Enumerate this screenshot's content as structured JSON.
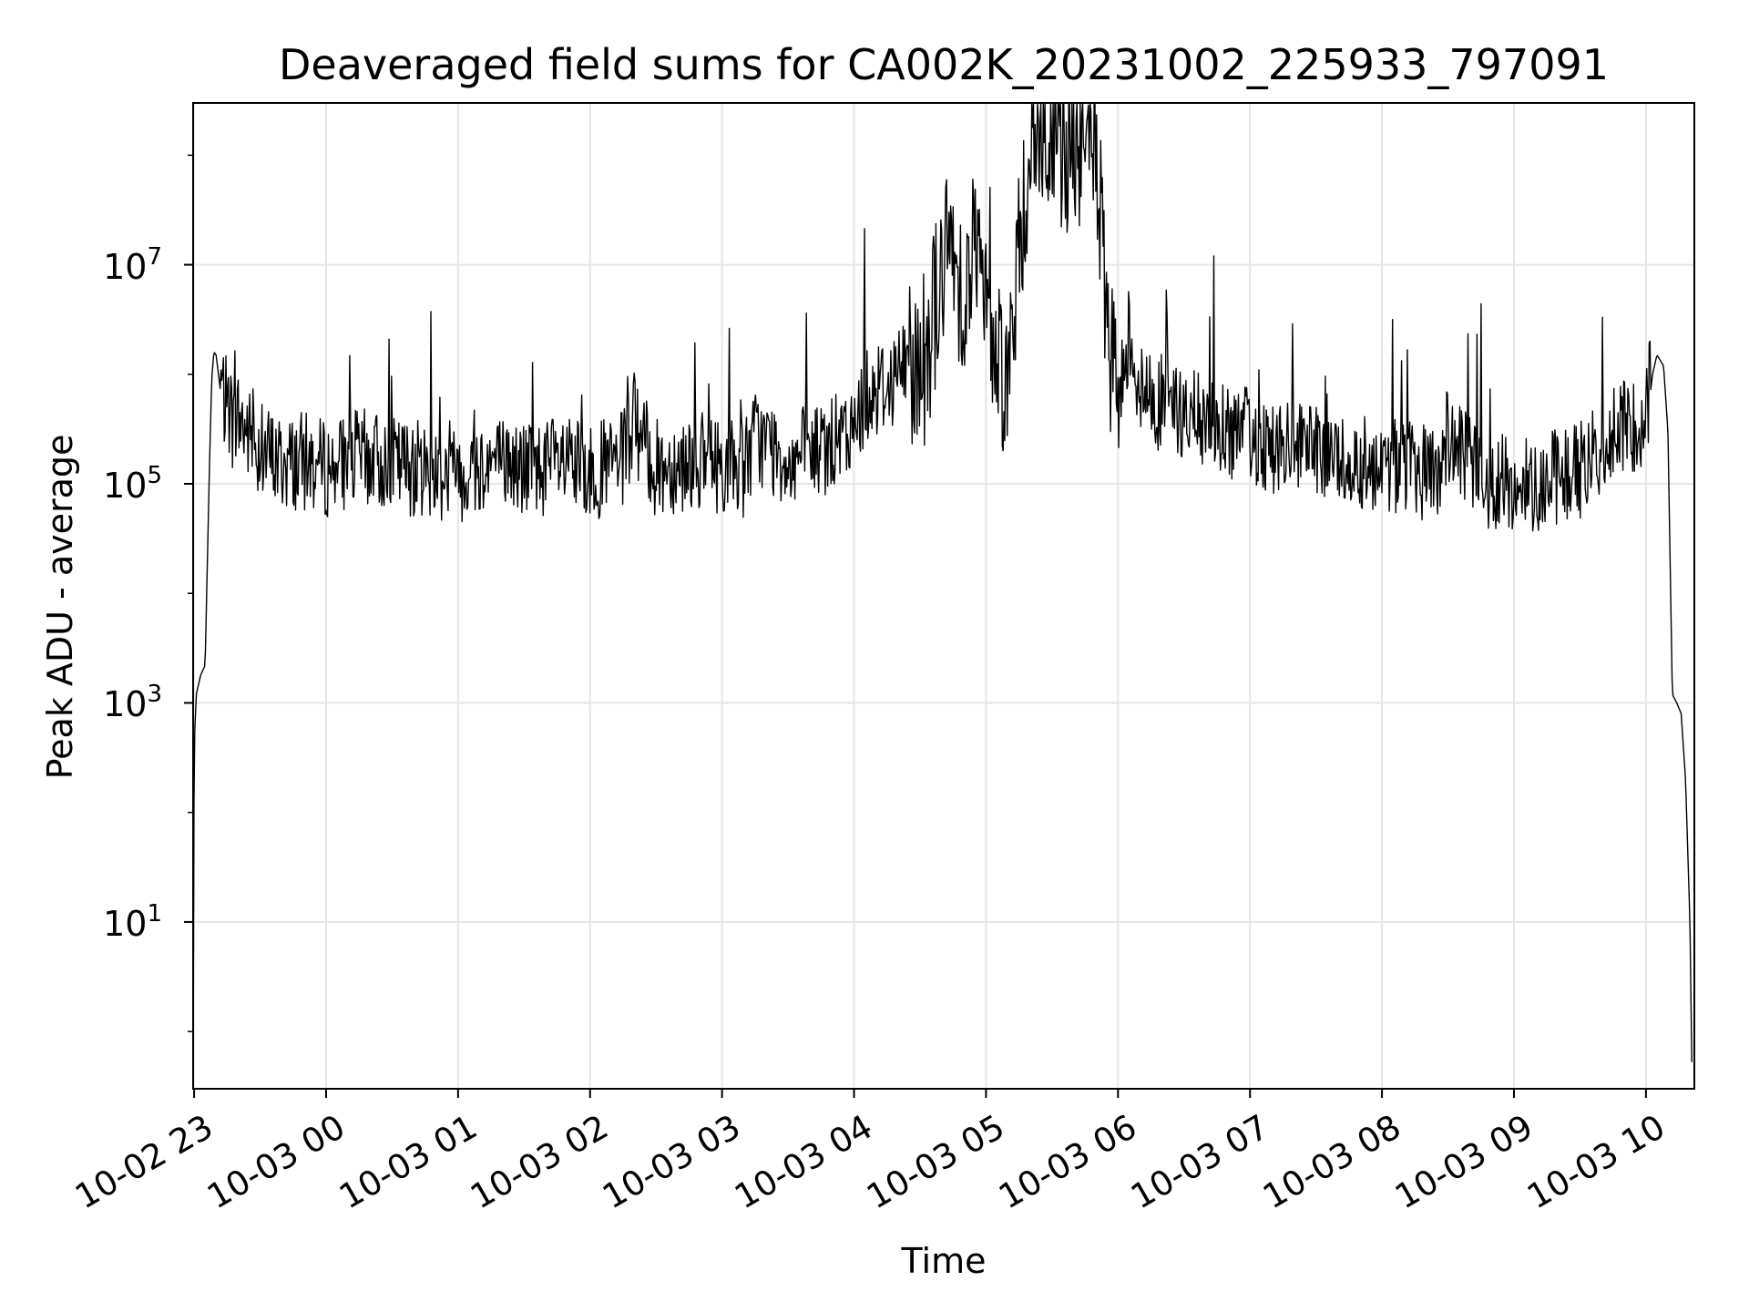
{
  "chart_data": {
    "type": "line",
    "title": "Deaveraged field sums for CA002K_20231002_225933_797091",
    "xlabel": "Time",
    "ylabel": "Peak ADU - average",
    "yscale": "log",
    "ylim": [
      0.3,
      300000000
    ],
    "xlim": [
      "2023-10-02 22:59:33",
      "2023-10-03 10:22:00"
    ],
    "grid": true,
    "line_color": "#000000",
    "x_ticks": [
      "10-02 23",
      "10-03 00",
      "10-03 01",
      "10-03 02",
      "10-03 03",
      "10-03 04",
      "10-03 05",
      "10-03 06",
      "10-03 07",
      "10-03 08",
      "10-03 09",
      "10-03 10"
    ],
    "x_tick_times": [
      "2023-10-02 23:00",
      "2023-10-03 00:00",
      "2023-10-03 01:00",
      "2023-10-03 02:00",
      "2023-10-03 03:00",
      "2023-10-03 04:00",
      "2023-10-03 05:00",
      "2023-10-03 06:00",
      "2023-10-03 07:00",
      "2023-10-03 08:00",
      "2023-10-03 09:00",
      "2023-10-03 10:00"
    ],
    "y_ticks": [
      {
        "value": 10,
        "base": "10",
        "exp": "1"
      },
      {
        "value": 1000,
        "base": "10",
        "exp": "3"
      },
      {
        "value": 100000,
        "base": "10",
        "exp": "5"
      },
      {
        "value": 10000000,
        "base": "10",
        "exp": "7"
      }
    ],
    "series": [
      {
        "x": [
          "2023-10-02 22:59:33",
          "2023-10-02 23:00:00",
          "2023-10-02 23:01:00",
          "2023-10-02 23:03:00",
          "2023-10-02 23:05:00",
          "2023-10-02 23:07:00",
          "2023-10-02 23:08:00",
          "2023-10-02 23:09:00",
          "2023-10-02 23:10:00",
          "2023-10-02 23:12:00",
          "2023-10-02 23:14:00",
          "2023-10-02 23:16:00",
          "2023-10-02 23:18:00",
          "2023-10-02 23:20:00",
          "2023-10-02 23:25:00",
          "2023-10-02 23:30:00",
          "2023-10-02 23:40:00",
          "2023-10-02 23:50:00",
          "2023-10-03 00:00:00",
          "2023-10-03 00:15:00",
          "2023-10-03 00:30:00",
          "2023-10-03 00:45:00",
          "2023-10-03 01:00:00",
          "2023-10-03 01:15:00",
          "2023-10-03 01:30:00",
          "2023-10-03 01:45:00",
          "2023-10-03 02:00:00",
          "2023-10-03 02:15:00",
          "2023-10-03 02:20:00",
          "2023-10-03 02:30:00",
          "2023-10-03 02:45:00",
          "2023-10-03 03:00:00",
          "2023-10-03 03:10:00",
          "2023-10-03 03:15:00",
          "2023-10-03 03:30:00",
          "2023-10-03 03:45:00",
          "2023-10-03 04:00:00",
          "2023-10-03 04:05:00",
          "2023-10-03 04:15:00",
          "2023-10-03 04:25:00",
          "2023-10-03 04:30:00",
          "2023-10-03 04:40:00",
          "2023-10-03 04:45:00",
          "2023-10-03 04:50:00",
          "2023-10-03 04:55:00",
          "2023-10-03 05:00:00",
          "2023-10-03 05:10:00",
          "2023-10-03 05:20:00",
          "2023-10-03 05:25:00",
          "2023-10-03 05:30:00",
          "2023-10-03 05:40:00",
          "2023-10-03 05:50:00",
          "2023-10-03 05:55:00",
          "2023-10-03 06:00:00",
          "2023-10-03 06:05:00",
          "2023-10-03 06:10:00",
          "2023-10-03 06:20:00",
          "2023-10-03 06:30:00",
          "2023-10-03 06:45:00",
          "2023-10-03 07:00:00",
          "2023-10-03 07:15:00",
          "2023-10-03 07:30:00",
          "2023-10-03 07:45:00",
          "2023-10-03 08:00:00",
          "2023-10-03 08:15:00",
          "2023-10-03 08:25:00",
          "2023-10-03 08:30:00",
          "2023-10-03 08:45:00",
          "2023-10-03 09:00:00",
          "2023-10-03 09:15:00",
          "2023-10-03 09:30:00",
          "2023-10-03 09:45:00",
          "2023-10-03 10:00:00",
          "2023-10-03 10:03:00",
          "2023-10-03 10:05:00",
          "2023-10-03 10:08:00",
          "2023-10-03 10:10:00",
          "2023-10-03 10:12:00",
          "2023-10-03 10:14:00",
          "2023-10-03 10:16:00",
          "2023-10-03 10:18:00",
          "2023-10-03 10:20:00",
          "2023-10-03 10:21:00"
        ],
        "y": [
          0.3,
          400,
          1200,
          1800,
          2200,
          150000,
          900000,
          1600000,
          1500000,
          700000,
          400000,
          350000,
          250000,
          300000,
          200000,
          150000,
          110000,
          120000,
          100000,
          130000,
          110000,
          100000,
          90000,
          120000,
          100000,
          110000,
          90000,
          120000,
          250000,
          100000,
          120000,
          110000,
          100000,
          200000,
          120000,
          150000,
          200000,
          500000,
          600000,
          1000000,
          500000,
          5000000,
          8000000,
          3000000,
          10000000,
          2000000,
          500000,
          80000000,
          90000000,
          75000000,
          70000000,
          80000000,
          1000000,
          300000,
          2000000,
          500000,
          400000,
          300000,
          250000,
          200000,
          150000,
          130000,
          120000,
          110000,
          100000,
          90000,
          200000,
          80000,
          70000,
          80000,
          100000,
          200000,
          300000,
          1000000,
          1500000,
          1200000,
          300000,
          1200,
          1000,
          800,
          200,
          10,
          0.3
        ]
      }
    ]
  }
}
